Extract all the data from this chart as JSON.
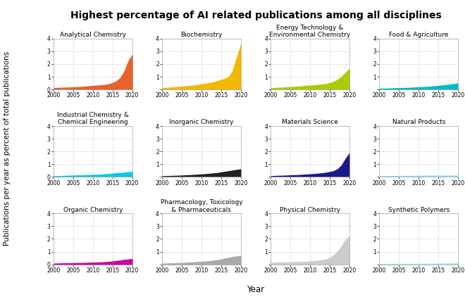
{
  "title": "Highest percentage of AI related publications among all disciplines",
  "ylabel": "Publications per year as percent of total publications",
  "xlabel": "Year",
  "years": [
    2000,
    2001,
    2002,
    2003,
    2004,
    2005,
    2006,
    2007,
    2008,
    2009,
    2010,
    2011,
    2012,
    2013,
    2014,
    2015,
    2016,
    2017,
    2018,
    2019,
    2020
  ],
  "ylim": [
    0,
    4
  ],
  "yticks": [
    0,
    1,
    2,
    3,
    4
  ],
  "xticks": [
    2000,
    2005,
    2010,
    2015,
    2020
  ],
  "subplots": [
    {
      "title": "Analytical Chemistry",
      "color": "#E8622A",
      "alpha": 1.0,
      "values": [
        0.1,
        0.12,
        0.13,
        0.14,
        0.15,
        0.17,
        0.18,
        0.2,
        0.22,
        0.25,
        0.28,
        0.3,
        0.32,
        0.35,
        0.4,
        0.5,
        0.65,
        0.9,
        1.4,
        2.2,
        2.7
      ]
    },
    {
      "title": "Biochemistry",
      "color": "#F5B800",
      "alpha": 1.0,
      "values": [
        0.1,
        0.12,
        0.15,
        0.17,
        0.2,
        0.22,
        0.25,
        0.28,
        0.3,
        0.35,
        0.4,
        0.45,
        0.5,
        0.55,
        0.65,
        0.75,
        0.85,
        1.0,
        1.5,
        2.5,
        3.5
      ]
    },
    {
      "title": "Energy Technology &\nEnvironmental Chemistry",
      "color": "#AACC00",
      "alpha": 1.0,
      "values": [
        0.1,
        0.11,
        0.13,
        0.14,
        0.16,
        0.18,
        0.2,
        0.22,
        0.25,
        0.28,
        0.3,
        0.32,
        0.35,
        0.38,
        0.42,
        0.5,
        0.6,
        0.75,
        1.0,
        1.3,
        1.6
      ]
    },
    {
      "title": "Food & Agriculture",
      "color": "#00BBCC",
      "alpha": 1.0,
      "values": [
        0.05,
        0.06,
        0.07,
        0.08,
        0.09,
        0.1,
        0.11,
        0.12,
        0.13,
        0.15,
        0.17,
        0.18,
        0.2,
        0.22,
        0.25,
        0.28,
        0.32,
        0.35,
        0.38,
        0.42,
        0.48
      ]
    },
    {
      "title": "Industrial Chemistry &\nChemical Engineering",
      "color": "#00CCEE",
      "alpha": 1.0,
      "values": [
        0.05,
        0.06,
        0.07,
        0.08,
        0.09,
        0.1,
        0.11,
        0.12,
        0.13,
        0.14,
        0.15,
        0.16,
        0.18,
        0.2,
        0.22,
        0.25,
        0.28,
        0.3,
        0.33,
        0.36,
        0.4
      ]
    },
    {
      "title": "Inorganic Chemistry",
      "color": "#222222",
      "alpha": 1.0,
      "values": [
        0.05,
        0.06,
        0.07,
        0.08,
        0.09,
        0.1,
        0.12,
        0.13,
        0.15,
        0.17,
        0.19,
        0.21,
        0.24,
        0.27,
        0.3,
        0.35,
        0.4,
        0.45,
        0.5,
        0.55,
        0.6
      ]
    },
    {
      "title": "Materials Science",
      "color": "#1A1A8C",
      "alpha": 1.0,
      "values": [
        0.05,
        0.07,
        0.08,
        0.09,
        0.1,
        0.12,
        0.13,
        0.14,
        0.16,
        0.18,
        0.2,
        0.22,
        0.25,
        0.28,
        0.32,
        0.38,
        0.45,
        0.6,
        0.9,
        1.4,
        1.85
      ]
    },
    {
      "title": "Natural Products",
      "color": "#88DDFF",
      "alpha": 1.0,
      "values": [
        0.05,
        0.055,
        0.06,
        0.062,
        0.065,
        0.07,
        0.072,
        0.075,
        0.077,
        0.08,
        0.082,
        0.085,
        0.087,
        0.09,
        0.09,
        0.09,
        0.09,
        0.09,
        0.09,
        0.09,
        0.09
      ]
    },
    {
      "title": "Organic Chemistry",
      "color": "#CC00AA",
      "alpha": 1.0,
      "values": [
        0.05,
        0.06,
        0.07,
        0.08,
        0.08,
        0.09,
        0.1,
        0.1,
        0.11,
        0.12,
        0.13,
        0.14,
        0.15,
        0.17,
        0.19,
        0.22,
        0.26,
        0.3,
        0.35,
        0.38,
        0.42
      ]
    },
    {
      "title": "Pharmacology, Toxicology\n& Pharmaceuticals",
      "color": "#AAAAAA",
      "alpha": 1.0,
      "values": [
        0.05,
        0.06,
        0.07,
        0.08,
        0.09,
        0.1,
        0.12,
        0.14,
        0.16,
        0.18,
        0.2,
        0.22,
        0.25,
        0.28,
        0.32,
        0.38,
        0.45,
        0.52,
        0.58,
        0.62,
        0.65
      ]
    },
    {
      "title": "Physical Chemistry",
      "color": "#CCCCCC",
      "alpha": 1.0,
      "values": [
        0.1,
        0.12,
        0.13,
        0.14,
        0.15,
        0.16,
        0.17,
        0.18,
        0.19,
        0.2,
        0.22,
        0.25,
        0.28,
        0.32,
        0.38,
        0.5,
        0.7,
        1.0,
        1.4,
        1.9,
        2.2
      ]
    },
    {
      "title": "Synthetic Polymers",
      "color": "#AADDEE",
      "alpha": 1.0,
      "values": [
        0.02,
        0.02,
        0.025,
        0.025,
        0.03,
        0.03,
        0.032,
        0.034,
        0.036,
        0.038,
        0.04,
        0.042,
        0.044,
        0.046,
        0.05,
        0.052,
        0.055,
        0.06,
        0.065,
        0.07,
        0.08
      ]
    }
  ],
  "background_color": "#FFFFFF",
  "grid_color": "#DDDDDD",
  "title_fontsize": 10,
  "subplot_title_fontsize": 6.5,
  "tick_fontsize": 5.5,
  "label_fontsize": 7.5
}
